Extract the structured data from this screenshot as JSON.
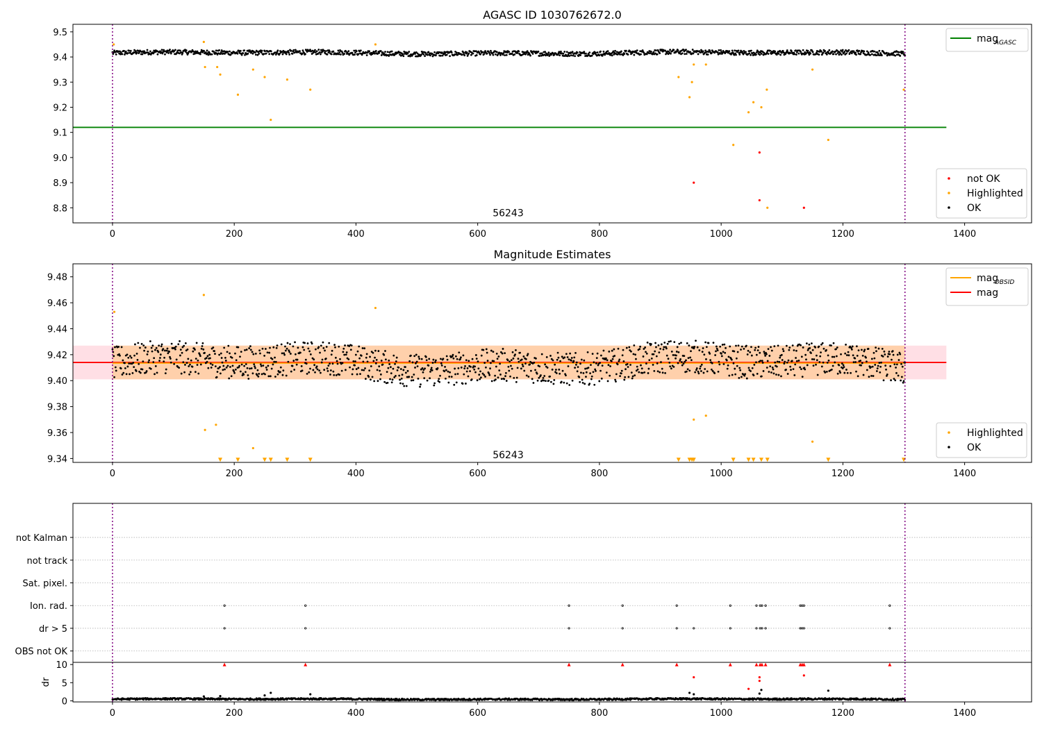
{
  "chart_data": [
    {
      "type": "scatter",
      "title": "AGASC ID 1030762672.0",
      "xlabel": "",
      "ylabel": "",
      "xlim": [
        -65,
        1510
      ],
      "ylim": [
        8.74,
        9.53
      ],
      "xticks": [
        0,
        200,
        400,
        600,
        800,
        1000,
        1200,
        1400
      ],
      "xtick_labels": [
        "0",
        "200",
        "400",
        "600",
        "800",
        "1000",
        "1200",
        "1400"
      ],
      "yticks": [
        8.8,
        8.9,
        9.0,
        9.1,
        9.2,
        9.3,
        9.4,
        9.5
      ],
      "ytick_labels": [
        "8.8",
        "8.9",
        "9.0",
        "9.1",
        "9.2",
        "9.3",
        "9.4",
        "9.5"
      ],
      "vlines": [
        0,
        1302
      ],
      "hlines": [
        {
          "y": 9.12,
          "x0": -65,
          "x1": 1370,
          "color": "#008000"
        }
      ],
      "annotation": {
        "text": "56243",
        "x": 650,
        "y": 8.78
      },
      "legend_lines": [
        {
          "label": "mag",
          "sub": "AGASC",
          "color": "#008000"
        }
      ],
      "legend_markers": [
        {
          "label": "not OK",
          "color": "#ff0000"
        },
        {
          "label": "Highlighted",
          "color": "#ffa500"
        },
        {
          "label": "OK",
          "color": "#000000"
        }
      ],
      "series": [
        {
          "name": "OK",
          "color": "#000000",
          "band": {
            "x0": 0,
            "x1": 1302,
            "mean": 9.416,
            "amp": 0.012,
            "points": 1300
          }
        },
        {
          "name": "Highlighted",
          "color": "#ffa500",
          "points": [
            [
              2,
              9.45
            ],
            [
              150,
              9.46
            ],
            [
              152,
              9.36
            ],
            [
              172,
              9.36
            ],
            [
              177,
              9.33
            ],
            [
              206,
              9.25
            ],
            [
              231,
              9.35
            ],
            [
              250,
              9.32
            ],
            [
              260,
              9.15
            ],
            [
              287,
              9.31
            ],
            [
              325,
              9.27
            ],
            [
              432,
              9.45
            ],
            [
              930,
              9.32
            ],
            [
              948,
              9.24
            ],
            [
              952,
              9.3
            ],
            [
              955,
              9.37
            ],
            [
              975,
              9.37
            ],
            [
              1020,
              9.05
            ],
            [
              1045,
              9.18
            ],
            [
              1053,
              9.22
            ],
            [
              1066,
              9.2
            ],
            [
              1075,
              9.27
            ],
            [
              1076,
              8.8
            ],
            [
              1150,
              9.35
            ],
            [
              1176,
              9.07
            ],
            [
              1300,
              9.27
            ]
          ]
        },
        {
          "name": "not OK",
          "color": "#ff0000",
          "points": [
            [
              955,
              8.9
            ],
            [
              1063,
              9.02
            ],
            [
              1063,
              8.83
            ],
            [
              1136,
              8.8
            ]
          ]
        }
      ]
    },
    {
      "type": "scatter",
      "title": "Magnitude Estimates",
      "xlabel": "",
      "ylabel": "",
      "xlim": [
        -65,
        1510
      ],
      "ylim": [
        9.337,
        9.49
      ],
      "xticks": [
        0,
        200,
        400,
        600,
        800,
        1000,
        1200,
        1400
      ],
      "xtick_labels": [
        "0",
        "200",
        "400",
        "600",
        "800",
        "1000",
        "1200",
        "1400"
      ],
      "yticks": [
        9.34,
        9.36,
        9.38,
        9.4,
        9.42,
        9.44,
        9.46,
        9.48
      ],
      "ytick_labels": [
        "9.34",
        "9.36",
        "9.38",
        "9.40",
        "9.42",
        "9.44",
        "9.46",
        "9.48"
      ],
      "vlines": [
        0,
        1302
      ],
      "bands": [
        {
          "y0": 9.401,
          "y1": 9.427,
          "x0": -65,
          "x1": 1370,
          "color": "#ffc0cb",
          "opacity": 0.5
        },
        {
          "y0": 9.401,
          "y1": 9.427,
          "x0": 0,
          "x1": 1302,
          "color": "#ffa500",
          "opacity": 0.25
        }
      ],
      "hlines": [
        {
          "y": 9.414,
          "x0": -65,
          "x1": 1370,
          "color": "#ff0000"
        },
        {
          "y": 9.4135,
          "x0": 0,
          "x1": 1302,
          "color": "#ffa500"
        }
      ],
      "annotation": {
        "text": "56243",
        "x": 650,
        "y": 9.343
      },
      "legend_lines": [
        {
          "label": "mag",
          "sub": "OBSID",
          "color": "#ffa500"
        },
        {
          "label": "mag",
          "sub": "",
          "color": "#ff0000"
        }
      ],
      "legend_markers": [
        {
          "label": "Highlighted",
          "color": "#ffa500"
        },
        {
          "label": "OK",
          "color": "#000000"
        }
      ],
      "series": [
        {
          "name": "OK",
          "color": "#000000",
          "band": {
            "x0": 0,
            "x1": 1302,
            "mean": 9.413,
            "amp": 0.016,
            "points": 1300
          }
        },
        {
          "name": "Highlighted",
          "color": "#ffa500",
          "points": [
            [
              3,
              9.453
            ],
            [
              150,
              9.466
            ],
            [
              152,
              9.362
            ],
            [
              170,
              9.366
            ],
            [
              231,
              9.348
            ],
            [
              432,
              9.456
            ],
            [
              955,
              9.37
            ],
            [
              975,
              9.373
            ],
            [
              1150,
              9.353
            ]
          ]
        },
        {
          "name": "Highlighted (below axis)",
          "color": "#ffa500",
          "marker": "triangle-down",
          "y": 9.339,
          "x": [
            177,
            206,
            250,
            260,
            287,
            325,
            930,
            948,
            952,
            955,
            1020,
            1045,
            1053,
            1066,
            1076,
            1176,
            1300
          ]
        }
      ]
    },
    {
      "type": "scatter",
      "title": "",
      "xlabel": "",
      "ylabel": "",
      "xlim": [
        -65,
        1510
      ],
      "ylim": [
        -0.5,
        6.5
      ],
      "yticks": [
        0,
        1,
        2,
        3,
        4,
        5
      ],
      "ytick_labels": [
        "OBS not OK",
        "dr > 5",
        "Ion. rad.",
        "Sat. pixel.",
        "not track",
        "not Kalman"
      ],
      "grid": "horizontal dotted",
      "vlines": [
        0,
        1302
      ],
      "series": [
        {
          "name": "Ion. rad.",
          "color": "#000000",
          "y": 2,
          "x": [
            184,
            317,
            750,
            838,
            927,
            1015,
            1058,
            1064,
            1067,
            1073,
            1130,
            1133,
            1136,
            1277
          ]
        },
        {
          "name": "dr > 5",
          "color": "#000000",
          "y": 1,
          "x": [
            184,
            317,
            750,
            838,
            927,
            955,
            1015,
            1058,
            1064,
            1067,
            1073,
            1130,
            1133,
            1136,
            1277
          ]
        }
      ]
    },
    {
      "type": "scatter",
      "title": "",
      "xlabel": "",
      "ylabel": "dr",
      "xlim": [
        -65,
        1510
      ],
      "ylim": [
        -0.3,
        10.6
      ],
      "xticks": [
        0,
        200,
        400,
        600,
        800,
        1000,
        1200,
        1400
      ],
      "xtick_labels": [
        "0",
        "200",
        "400",
        "600",
        "800",
        "1000",
        "1200",
        "1400"
      ],
      "yticks": [
        0,
        5,
        10
      ],
      "ytick_labels": [
        "0",
        "5",
        "10"
      ],
      "vlines": [
        0,
        1302
      ],
      "series": [
        {
          "name": "dr",
          "color": "#000000",
          "band": {
            "x0": 0,
            "x1": 1302,
            "mean": 0.45,
            "amp": 0.3,
            "points": 1300
          }
        },
        {
          "name": "dr (outliers)",
          "color": "#000000",
          "points": [
            [
              150,
              1.2
            ],
            [
              177,
              1.3
            ],
            [
              250,
              1.5
            ],
            [
              260,
              2.2
            ],
            [
              325,
              1.8
            ],
            [
              948,
              2.2
            ],
            [
              955,
              1.8
            ],
            [
              1176,
              2.8
            ],
            [
              1063,
              2.0
            ],
            [
              1066,
              3.0
            ]
          ]
        },
        {
          "name": "dr > 5",
          "color": "#ff0000",
          "points": [
            [
              955,
              6.5
            ],
            [
              1045,
              3.3
            ],
            [
              1063,
              5.5
            ],
            [
              1063,
              6.5
            ],
            [
              1136,
              7.0
            ]
          ]
        },
        {
          "name": "dr clipped",
          "color": "#ff0000",
          "marker": "triangle-up",
          "y": 10,
          "x": [
            184,
            317,
            750,
            838,
            927,
            1015,
            1058,
            1064,
            1067,
            1073,
            1130,
            1133,
            1136,
            1277
          ]
        }
      ]
    }
  ]
}
